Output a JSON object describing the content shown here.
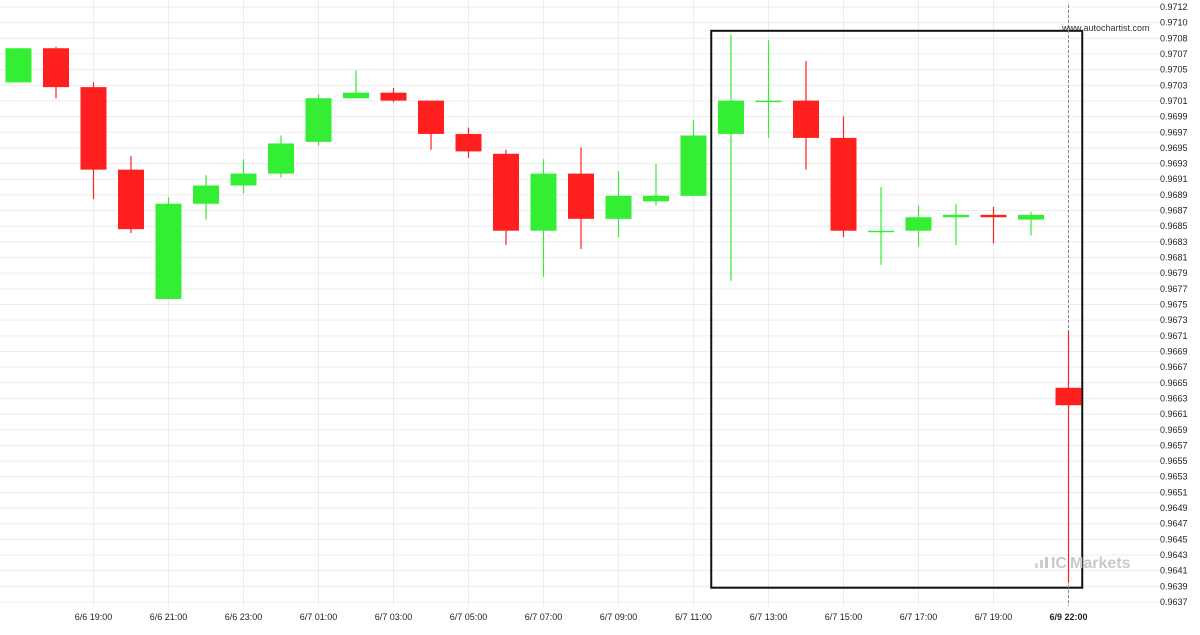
{
  "watermark": "www.autochartist.com",
  "broker_logo": {
    "prefix": "IC",
    "text": "Markets",
    "colors": {
      "prefix": "#b6e3ad",
      "text": "#c8c8c8"
    }
  },
  "colors": {
    "up": "#33ee33",
    "down": "#ff1f1f",
    "grid": "#ececec",
    "highlight_box": "#111111",
    "current_line": "#888888"
  },
  "chart_data": {
    "type": "candlestick",
    "ylim": [
      0.9636,
      0.9713
    ],
    "y_ticks": [
      "0.9712",
      "0.9710",
      "0.9708",
      "0.9707",
      "0.9705",
      "0.9703",
      "0.9701",
      "0.9699",
      "0.9697",
      "0.9695",
      "0.9693",
      "0.9691",
      "0.9689",
      "0.9687",
      "0.9685",
      "0.9683",
      "0.9681",
      "0.9679",
      "0.9677",
      "0.9675",
      "0.9673",
      "0.9671",
      "0.9669",
      "0.9667",
      "0.9665",
      "0.9663",
      "0.9661",
      "0.9659",
      "0.9657",
      "0.9655",
      "0.9653",
      "0.9651",
      "0.9649",
      "0.9647",
      "0.9645",
      "0.9643",
      "0.9641",
      "0.9639",
      "0.9637"
    ],
    "x_ticks": [
      {
        "label": "6/6 19:00",
        "index": 2
      },
      {
        "label": "6/6 21:00",
        "index": 4
      },
      {
        "label": "6/6 23:00",
        "index": 6
      },
      {
        "label": "6/7 01:00",
        "index": 8
      },
      {
        "label": "6/7 03:00",
        "index": 10
      },
      {
        "label": "6/7 05:00",
        "index": 12
      },
      {
        "label": "6/7 07:00",
        "index": 14
      },
      {
        "label": "6/7 09:00",
        "index": 16
      },
      {
        "label": "6/7 11:00",
        "index": 18
      },
      {
        "label": "6/7 13:00",
        "index": 20
      },
      {
        "label": "6/7 15:00",
        "index": 22
      },
      {
        "label": "6/7 17:00",
        "index": 24
      },
      {
        "label": "6/7 19:00",
        "index": 26
      },
      {
        "label": "6/9 22:00",
        "index": 28,
        "bold": true
      }
    ],
    "candles": [
      {
        "o": 0.97025,
        "h": 0.97068,
        "l": 0.97025,
        "c": 0.97068
      },
      {
        "o": 0.97068,
        "h": 0.9707,
        "l": 0.97005,
        "c": 0.97019
      },
      {
        "o": 0.97019,
        "h": 0.97025,
        "l": 0.96878,
        "c": 0.96915
      },
      {
        "o": 0.96915,
        "h": 0.96932,
        "l": 0.96835,
        "c": 0.9684
      },
      {
        "o": 0.96752,
        "h": 0.9688,
        "l": 0.96752,
        "c": 0.96872
      },
      {
        "o": 0.96872,
        "h": 0.96908,
        "l": 0.96852,
        "c": 0.96895
      },
      {
        "o": 0.96895,
        "h": 0.96928,
        "l": 0.96885,
        "c": 0.9691
      },
      {
        "o": 0.9691,
        "h": 0.96958,
        "l": 0.96905,
        "c": 0.96948
      },
      {
        "o": 0.9695,
        "h": 0.9701,
        "l": 0.96945,
        "c": 0.97005
      },
      {
        "o": 0.97005,
        "h": 0.9704,
        "l": 0.97005,
        "c": 0.97012
      },
      {
        "o": 0.97012,
        "h": 0.97018,
        "l": 0.97,
        "c": 0.97002
      },
      {
        "o": 0.97002,
        "h": 0.97002,
        "l": 0.9694,
        "c": 0.9696
      },
      {
        "o": 0.9696,
        "h": 0.96968,
        "l": 0.9693,
        "c": 0.96938
      },
      {
        "o": 0.96935,
        "h": 0.9694,
        "l": 0.9682,
        "c": 0.96838
      },
      {
        "o": 0.96838,
        "h": 0.96928,
        "l": 0.9678,
        "c": 0.9691
      },
      {
        "o": 0.9691,
        "h": 0.96943,
        "l": 0.96815,
        "c": 0.96853
      },
      {
        "o": 0.96853,
        "h": 0.96913,
        "l": 0.9683,
        "c": 0.96882
      },
      {
        "o": 0.96875,
        "h": 0.96922,
        "l": 0.9687,
        "c": 0.96882
      },
      {
        "o": 0.96882,
        "h": 0.96978,
        "l": 0.96882,
        "c": 0.96958
      },
      {
        "o": 0.9696,
        "h": 0.97085,
        "l": 0.96775,
        "c": 0.97002
      },
      {
        "o": 0.97002,
        "h": 0.97078,
        "l": 0.96955,
        "c": 0.97002
      },
      {
        "o": 0.97002,
        "h": 0.97052,
        "l": 0.96915,
        "c": 0.96955
      },
      {
        "o": 0.96955,
        "h": 0.96982,
        "l": 0.9683,
        "c": 0.96838
      },
      {
        "o": 0.96838,
        "h": 0.96893,
        "l": 0.96795,
        "c": 0.96838
      },
      {
        "o": 0.96838,
        "h": 0.9687,
        "l": 0.96818,
        "c": 0.96855
      },
      {
        "o": 0.96855,
        "h": 0.96872,
        "l": 0.9682,
        "c": 0.96858
      },
      {
        "o": 0.96858,
        "h": 0.96868,
        "l": 0.96822,
        "c": 0.96855
      },
      {
        "o": 0.96852,
        "h": 0.96862,
        "l": 0.96832,
        "c": 0.96858
      },
      {
        "o": 0.9664,
        "h": 0.96712,
        "l": 0.96395,
        "c": 0.96618
      }
    ],
    "highlight": {
      "from_index": 19,
      "to_index": 28,
      "top": 0.9709,
      "bottom": 0.96388
    },
    "current_index": 28,
    "grid": true,
    "legend": "none"
  }
}
